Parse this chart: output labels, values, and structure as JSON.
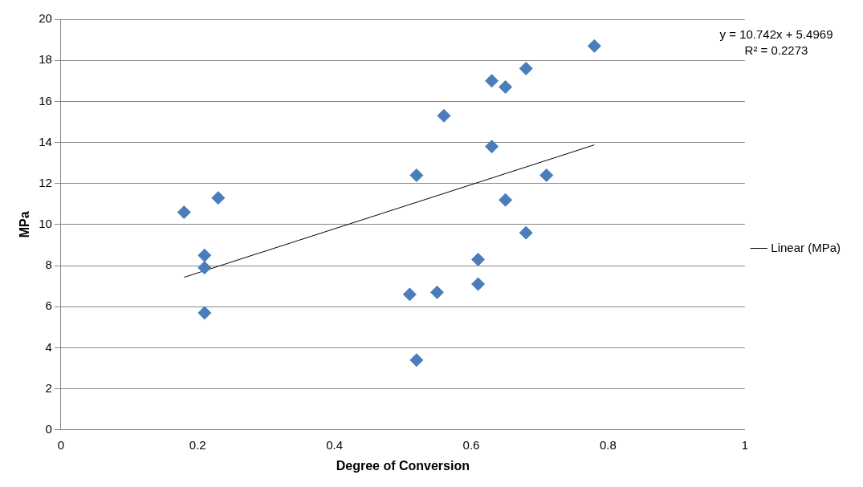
{
  "chart_data": {
    "type": "scatter",
    "xlabel": "Degree of Conversion",
    "ylabel": "MPa",
    "xlim": [
      0,
      1
    ],
    "xticks": [
      0,
      0.2,
      0.4,
      0.6,
      0.8,
      1
    ],
    "ylim": [
      0,
      20
    ],
    "yticks": [
      0,
      2,
      4,
      6,
      8,
      10,
      12,
      14,
      16,
      18,
      20
    ],
    "grid": "y",
    "legend": "right",
    "marker": "diamond",
    "series": [
      {
        "type": "scatter",
        "color": "#4a7ebb",
        "x": [
          0.18,
          0.21,
          0.21,
          0.21,
          0.23,
          0.51,
          0.52,
          0.52,
          0.55,
          0.56,
          0.61,
          0.61,
          0.63,
          0.63,
          0.65,
          0.65,
          0.68,
          0.68,
          0.71,
          0.78
        ],
        "values": [
          10.6,
          8.5,
          7.9,
          5.7,
          11.3,
          6.6,
          3.4,
          12.4,
          6.7,
          15.3,
          8.3,
          7.1,
          17.0,
          13.8,
          16.7,
          11.2,
          17.6,
          9.6,
          12.4,
          18.7
        ]
      },
      {
        "type": "line",
        "name": "Linear (MPa)",
        "color": "#000000",
        "marker": "none",
        "x": [
          0.18,
          0.78
        ],
        "values": [
          7.43,
          13.88
        ]
      }
    ],
    "annotations": [
      "y = 10.742x + 5.4969",
      "R² = 0.2273"
    ]
  }
}
